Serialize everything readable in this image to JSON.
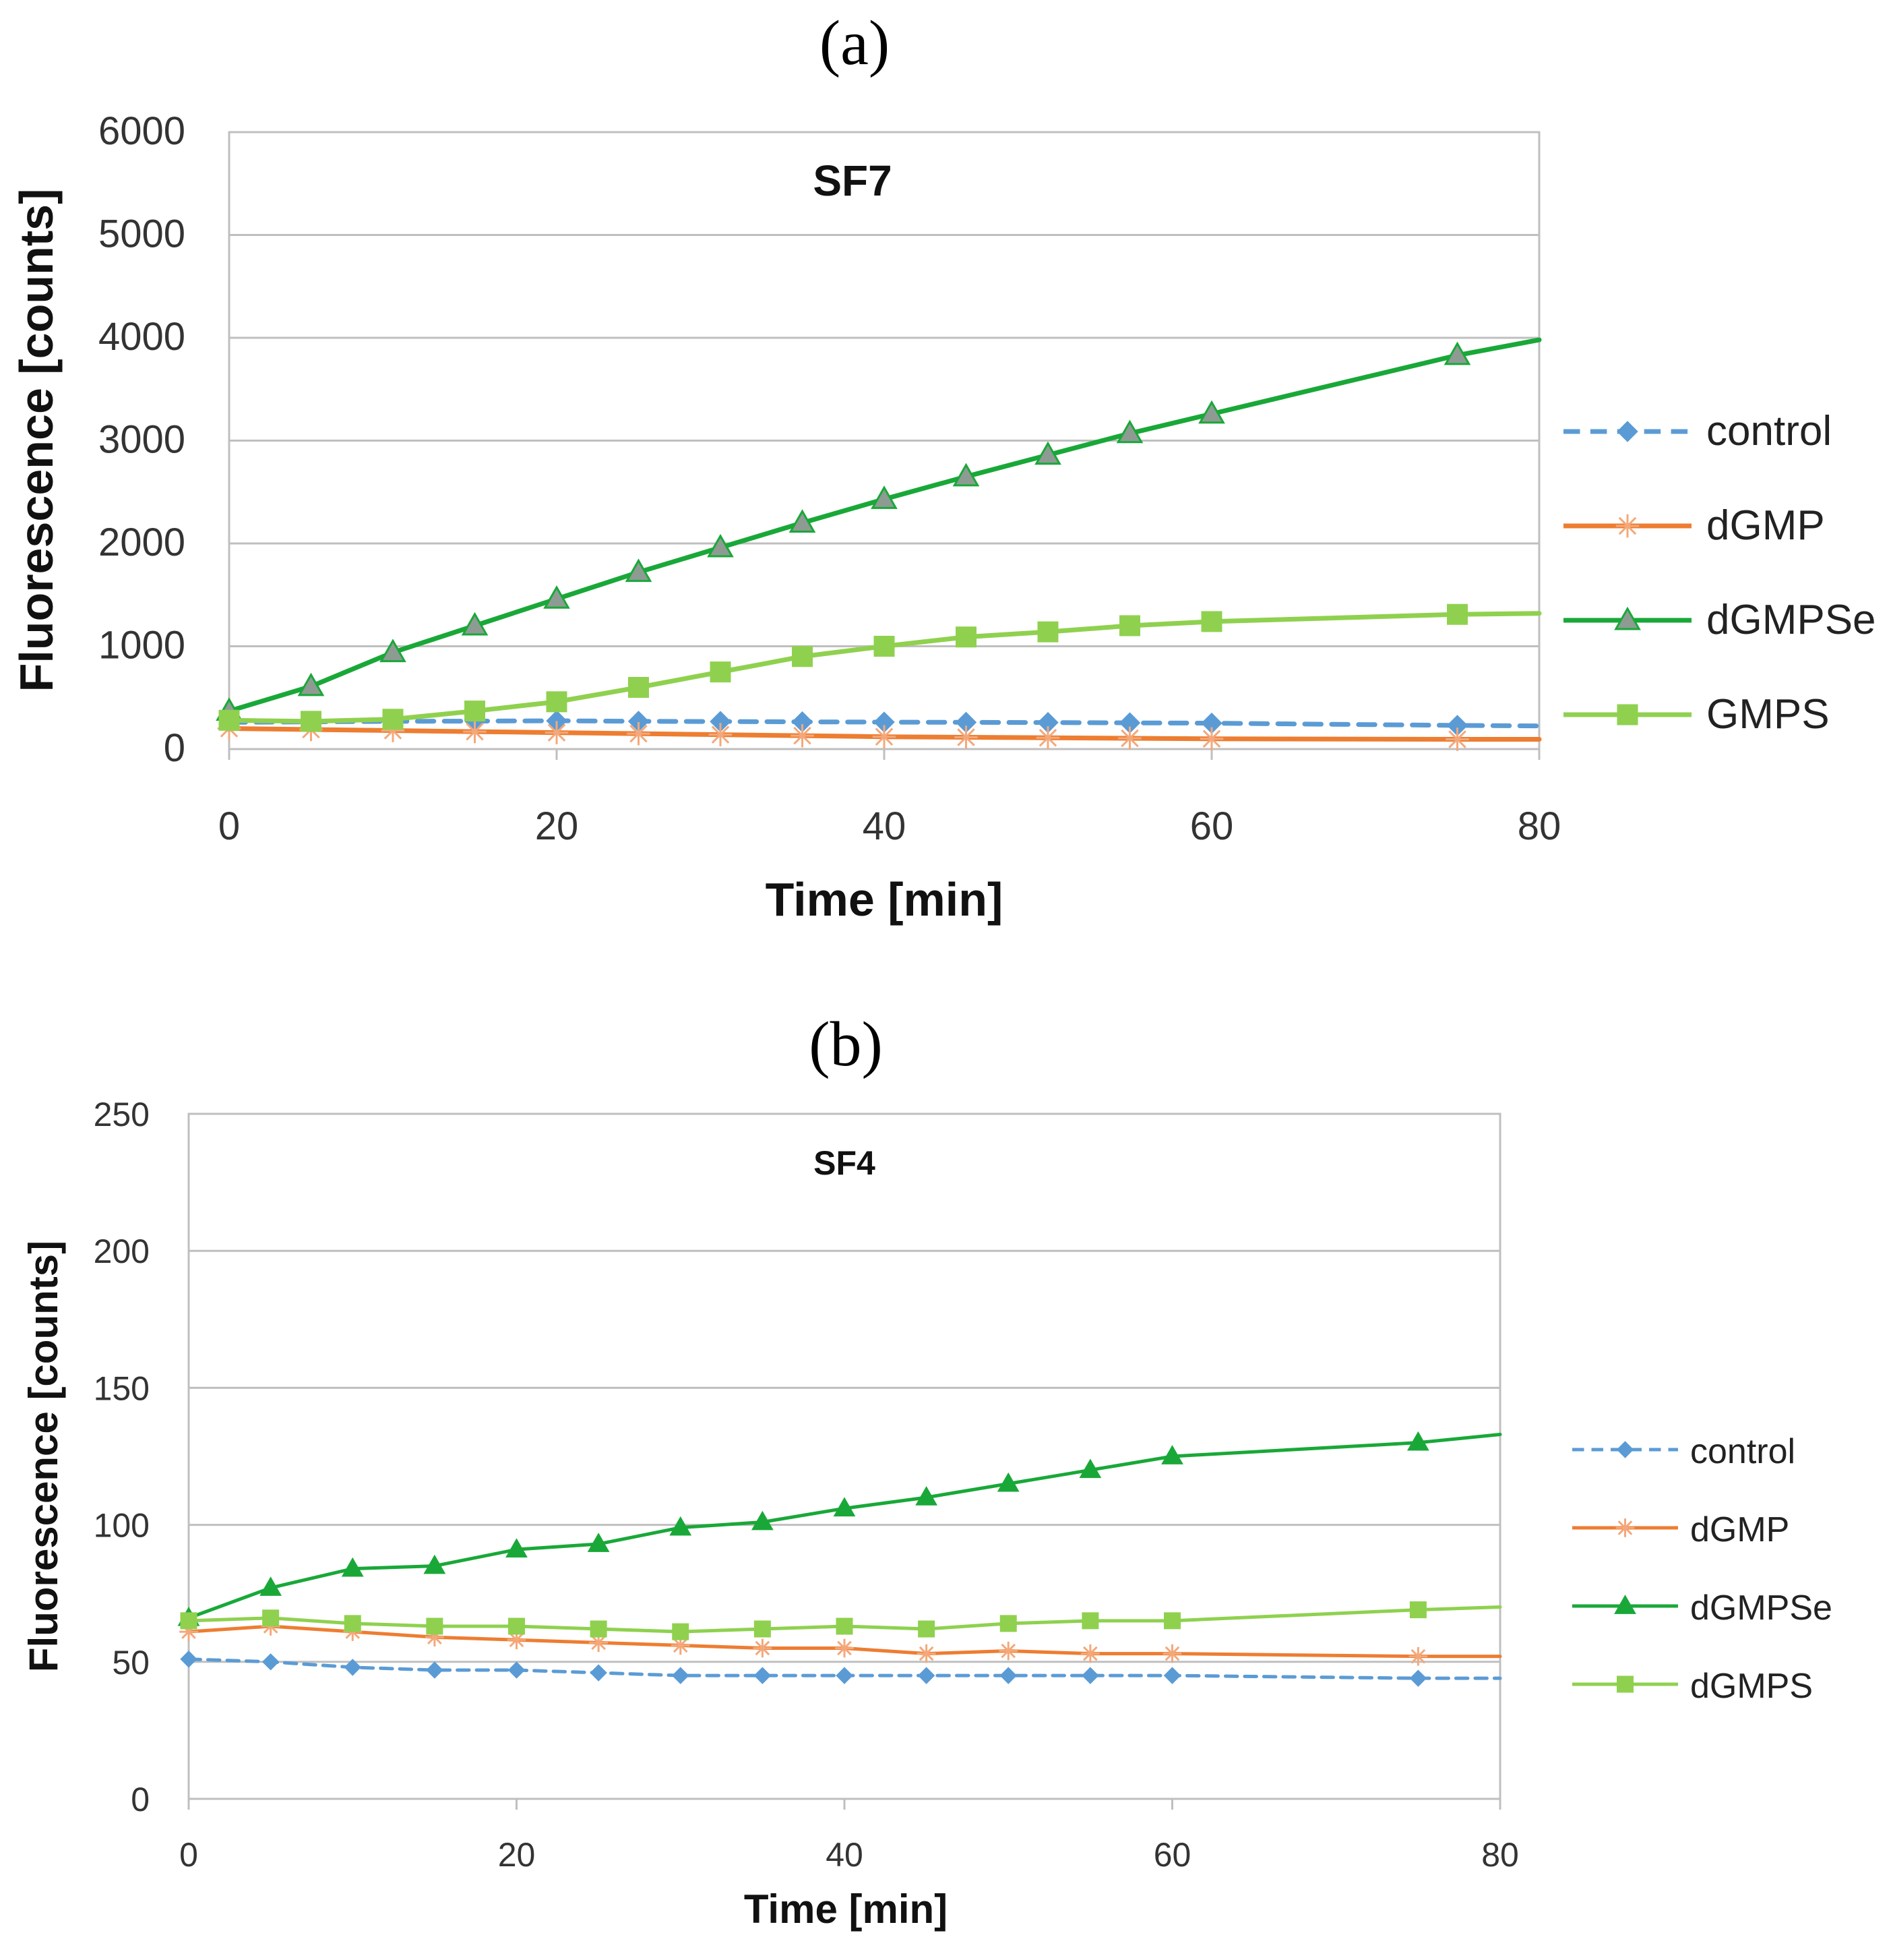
{
  "chart_data": [
    {
      "panel_label": "(a)",
      "type": "line",
      "title": "SF7",
      "xlabel": "Time [min]",
      "ylabel": "Fluorescence [counts]",
      "xlim": [
        0,
        80
      ],
      "ylim": [
        0,
        6000
      ],
      "xticks": [
        "0",
        "20",
        "40",
        "60",
        "80"
      ],
      "yticks": [
        "0",
        "1000",
        "2000",
        "3000",
        "4000",
        "5000",
        "6000"
      ],
      "grid": "horizontal",
      "legend_position": "right",
      "series": [
        {
          "name": "control",
          "color": "#5b9bd5",
          "marker": "diamond",
          "dashed": true,
          "x": [
            0,
            5,
            10,
            15,
            20,
            25,
            30,
            35,
            40,
            45,
            50,
            55,
            60,
            75,
            80
          ],
          "y": [
            260,
            265,
            270,
            272,
            275,
            270,
            268,
            265,
            262,
            260,
            258,
            255,
            252,
            230,
            225
          ]
        },
        {
          "name": "dGMP",
          "color": "#ed7d31",
          "marker": "asterisk",
          "dashed": false,
          "x": [
            0,
            5,
            10,
            15,
            20,
            25,
            30,
            35,
            40,
            45,
            50,
            55,
            60,
            75,
            80
          ],
          "y": [
            200,
            190,
            180,
            170,
            160,
            150,
            140,
            130,
            120,
            115,
            110,
            105,
            100,
            95,
            95
          ]
        },
        {
          "name": "dGMPSe",
          "color": "#19a838",
          "marker": "triangle",
          "dashed": false,
          "x": [
            0,
            5,
            10,
            15,
            20,
            25,
            30,
            35,
            40,
            45,
            50,
            55,
            60,
            75,
            80
          ],
          "y": [
            370,
            610,
            940,
            1200,
            1460,
            1720,
            1960,
            2200,
            2430,
            2650,
            2860,
            3070,
            3260,
            3830,
            3980
          ]
        },
        {
          "name": "GMPS",
          "color": "#8fd14f",
          "marker": "square",
          "dashed": false,
          "x": [
            0,
            5,
            10,
            15,
            20,
            25,
            30,
            35,
            40,
            45,
            50,
            55,
            60,
            75,
            80
          ],
          "y": [
            280,
            270,
            290,
            370,
            460,
            600,
            750,
            900,
            1000,
            1090,
            1140,
            1200,
            1240,
            1310,
            1320
          ]
        }
      ]
    },
    {
      "panel_label": "(b)",
      "type": "line",
      "title": "SF4",
      "xlabel": "Time [min]",
      "ylabel": "Fluorescence [counts]",
      "xlim": [
        0,
        80
      ],
      "ylim": [
        0,
        250
      ],
      "xticks": [
        "0",
        "20",
        "40",
        "60",
        "80"
      ],
      "yticks": [
        "0",
        "50",
        "100",
        "150",
        "200",
        "250"
      ],
      "grid": "horizontal",
      "legend_position": "right",
      "series": [
        {
          "name": "control",
          "color": "#5b9bd5",
          "marker": "diamond",
          "dashed": true,
          "x": [
            0,
            5,
            10,
            15,
            20,
            25,
            30,
            35,
            40,
            45,
            50,
            55,
            60,
            75,
            80
          ],
          "y": [
            51,
            50,
            48,
            47,
            47,
            46,
            45,
            45,
            45,
            45,
            45,
            45,
            45,
            44,
            44
          ]
        },
        {
          "name": "dGMP",
          "color": "#ed7d31",
          "marker": "asterisk",
          "dashed": false,
          "x": [
            0,
            5,
            10,
            15,
            20,
            25,
            30,
            35,
            40,
            45,
            50,
            55,
            60,
            75,
            80
          ],
          "y": [
            61,
            63,
            61,
            59,
            58,
            57,
            56,
            55,
            55,
            53,
            54,
            53,
            53,
            52,
            52
          ]
        },
        {
          "name": "dGMPSe",
          "color": "#19a838",
          "marker": "triangle",
          "dashed": false,
          "x": [
            0,
            5,
            10,
            15,
            20,
            25,
            30,
            35,
            40,
            45,
            50,
            55,
            60,
            75,
            80
          ],
          "y": [
            66,
            77,
            84,
            85,
            91,
            93,
            99,
            101,
            106,
            110,
            115,
            120,
            125,
            130,
            133
          ]
        },
        {
          "name": "dGMPS",
          "color": "#8fd14f",
          "marker": "square",
          "dashed": false,
          "x": [
            0,
            5,
            10,
            15,
            20,
            25,
            30,
            35,
            40,
            45,
            50,
            55,
            60,
            75,
            80
          ],
          "y": [
            65,
            66,
            64,
            63,
            63,
            62,
            61,
            62,
            63,
            62,
            64,
            65,
            65,
            69,
            70
          ]
        }
      ]
    }
  ]
}
